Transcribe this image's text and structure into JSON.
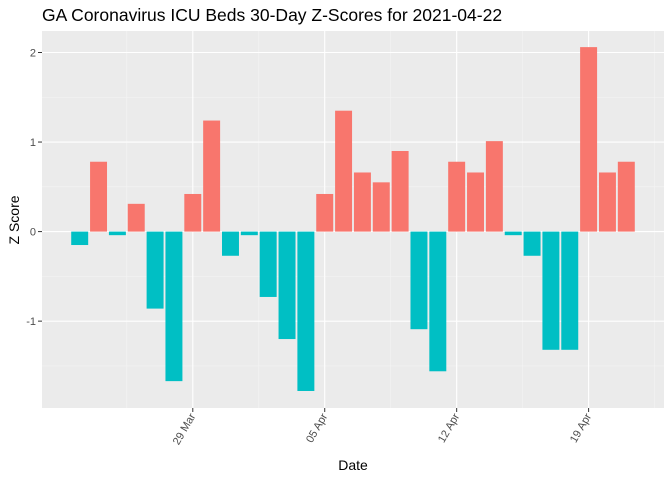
{
  "chart_data": {
    "type": "bar",
    "title": "GA Coronavirus ICU Beds 30-Day Z-Scores for 2021-04-22",
    "xlabel": "Date",
    "ylabel": "Z Score",
    "ylim": [
      -1.97,
      2.24
    ],
    "y_ticks": [
      -1,
      0,
      1,
      2
    ],
    "x_ticks": [
      {
        "date": "2021-03-29",
        "label": "29 Mar"
      },
      {
        "date": "2021-04-05",
        "label": "05 Apr"
      },
      {
        "date": "2021-04-12",
        "label": "12 Apr"
      },
      {
        "date": "2021-04-19",
        "label": "19 Apr"
      }
    ],
    "x_range": [
      "2021-03-21",
      "2021-04-23"
    ],
    "grid": true,
    "legend": "none",
    "colors": {
      "positive": "#F8766D",
      "negative": "#00BFC4",
      "panel": "#EBEBEB",
      "grid_major": "#FFFFFF",
      "grid_minor": "#F4F4F4"
    },
    "x": [
      "2021-03-23",
      "2021-03-24",
      "2021-03-25",
      "2021-03-26",
      "2021-03-27",
      "2021-03-28",
      "2021-03-29",
      "2021-03-30",
      "2021-03-31",
      "2021-04-01",
      "2021-04-02",
      "2021-04-03",
      "2021-04-04",
      "2021-04-05",
      "2021-04-06",
      "2021-04-07",
      "2021-04-08",
      "2021-04-09",
      "2021-04-10",
      "2021-04-11",
      "2021-04-12",
      "2021-04-13",
      "2021-04-14",
      "2021-04-15",
      "2021-04-16",
      "2021-04-17",
      "2021-04-18",
      "2021-04-19",
      "2021-04-20",
      "2021-04-21",
      "2021-04-22"
    ],
    "values": [
      -0.15,
      0.78,
      -0.04,
      0.31,
      -0.86,
      -1.67,
      0.42,
      1.24,
      -0.27,
      -0.04,
      -0.73,
      -1.2,
      -1.78,
      0.42,
      1.35,
      0.66,
      0.55,
      0.9,
      -1.09,
      -1.56,
      0.78,
      0.66,
      1.01,
      -0.04,
      -0.27,
      -1.32,
      -1.32,
      2.06,
      0.66,
      0.78,
      0.0
    ]
  }
}
